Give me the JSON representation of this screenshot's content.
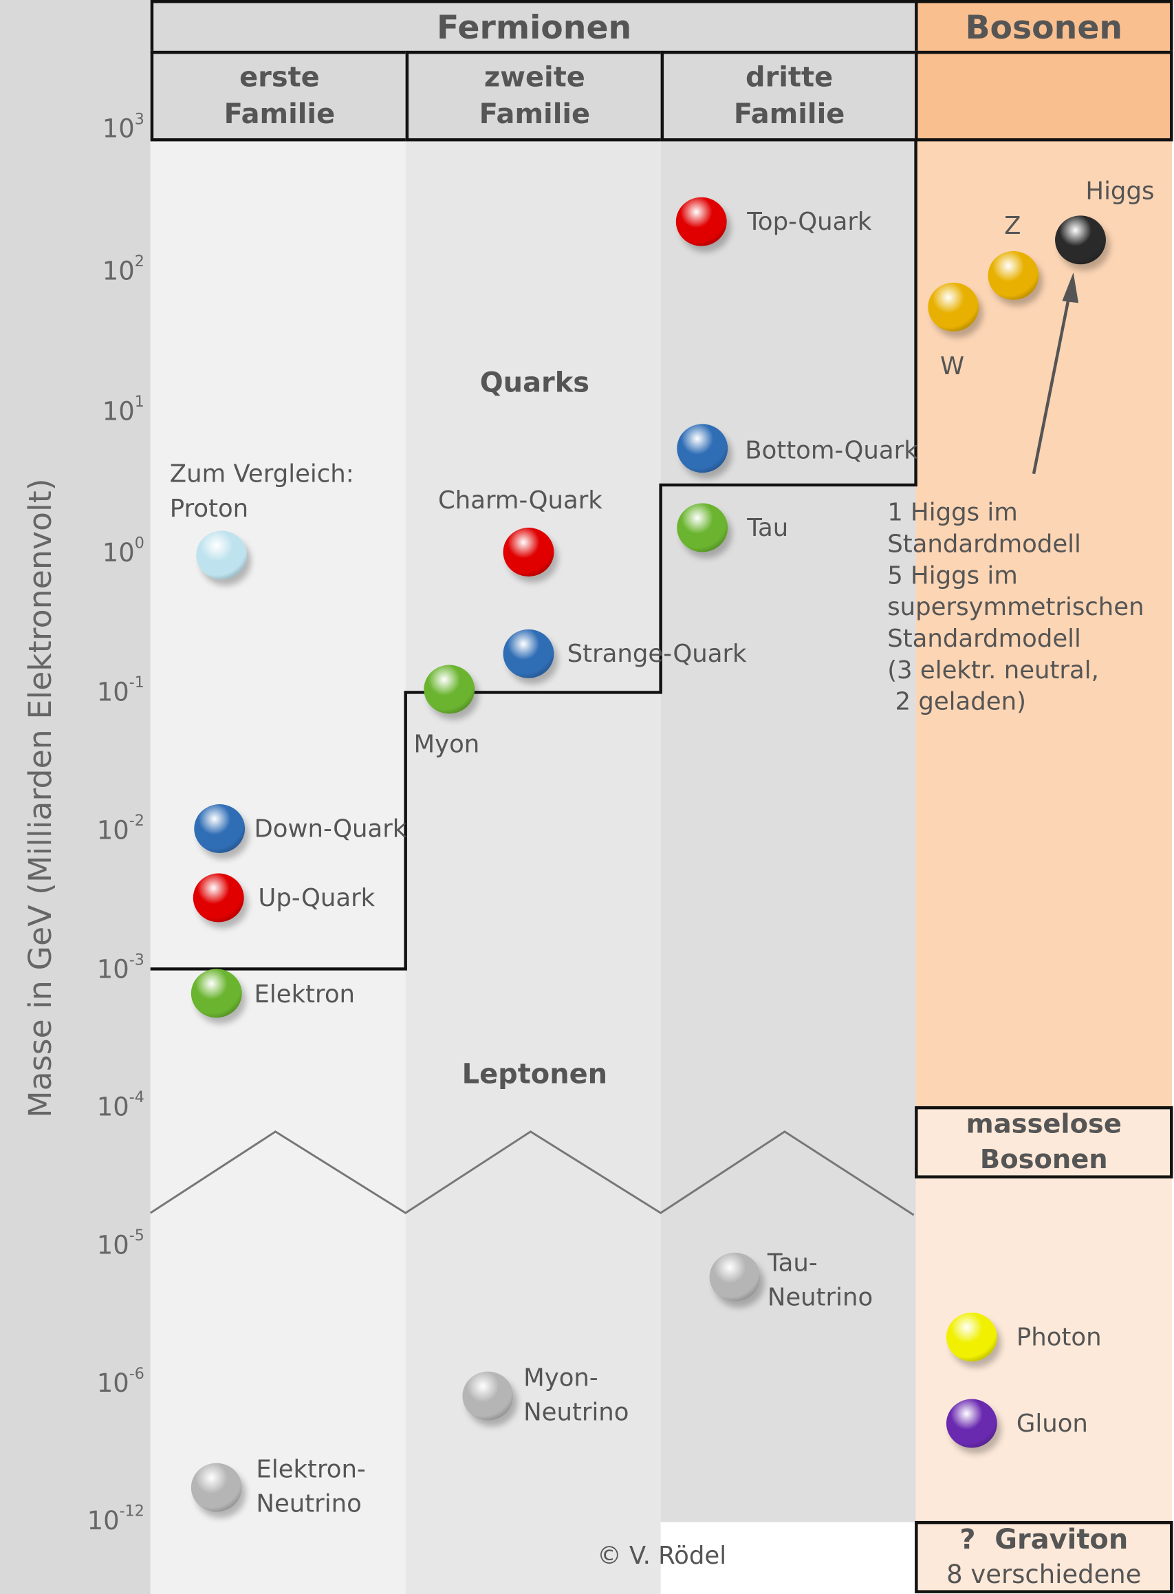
{
  "header": {
    "fermions": "Fermionen",
    "bosons": "Bosonen",
    "families": [
      "erste Familie",
      "zweite Familie",
      "dritte Familie"
    ]
  },
  "axis": {
    "label": "Masse in GeV (Milliarden Elektronenvolt)",
    "ticks": [
      {
        "base": "10",
        "exp": "3"
      },
      {
        "base": "10",
        "exp": "2"
      },
      {
        "base": "10",
        "exp": "1"
      },
      {
        "base": "10",
        "exp": "0"
      },
      {
        "base": "10",
        "exp": "-1"
      },
      {
        "base": "10",
        "exp": "-2"
      },
      {
        "base": "10",
        "exp": "-3"
      },
      {
        "base": "10",
        "exp": "-4"
      },
      {
        "base": "10",
        "exp": "-5"
      },
      {
        "base": "10",
        "exp": "-6"
      },
      {
        "base": "10",
        "exp": "-12"
      }
    ]
  },
  "groups": {
    "quarks": "Quarks",
    "leptons": "Leptonen"
  },
  "particles": [
    {
      "name": "top-quark",
      "lines": [
        "Top-Quark"
      ],
      "color": "#e00000"
    },
    {
      "name": "bottom-quark",
      "lines": [
        "Bottom-Quark"
      ],
      "color": "#2f6db5"
    },
    {
      "name": "tau",
      "lines": [
        "Tau"
      ],
      "color": "#6ab42f"
    },
    {
      "name": "charm-quark",
      "lines": [
        "Charm-Quark"
      ],
      "color": "#e00000"
    },
    {
      "name": "strange-quark",
      "lines": [
        "Strange-Quark"
      ],
      "color": "#2f6db5"
    },
    {
      "name": "myon",
      "lines": [
        "Myon"
      ],
      "color": "#6ab42f"
    },
    {
      "name": "proton",
      "lines": [
        "Zum Vergleich:",
        "Proton"
      ],
      "color": "#bfe3ee"
    },
    {
      "name": "down-quark",
      "lines": [
        "Down-Quark"
      ],
      "color": "#2f6db5"
    },
    {
      "name": "up-quark",
      "lines": [
        "Up-Quark"
      ],
      "color": "#e00000"
    },
    {
      "name": "elektron",
      "lines": [
        "Elektron"
      ],
      "color": "#6ab42f"
    },
    {
      "name": "tau-neutrino",
      "lines": [
        "Tau-",
        "Neutrino"
      ],
      "color": "#b5b5b5"
    },
    {
      "name": "myon-neutrino",
      "lines": [
        "Myon-",
        "Neutrino"
      ],
      "color": "#b5b5b5"
    },
    {
      "name": "elektron-neutrino",
      "lines": [
        "Elektron-",
        "Neutrino"
      ],
      "color": "#b5b5b5"
    },
    {
      "name": "w-boson",
      "lines": [
        "W"
      ],
      "color": "#e8b000"
    },
    {
      "name": "z-boson",
      "lines": [
        "Z"
      ],
      "color": "#e8b000"
    },
    {
      "name": "higgs",
      "lines": [
        "Higgs"
      ],
      "color": "#2a2a2a"
    },
    {
      "name": "photon",
      "lines": [
        "Photon"
      ],
      "color": "#f0f000"
    },
    {
      "name": "gluon",
      "lines": [
        "Gluon"
      ],
      "color": "#6a2ab0"
    }
  ],
  "higgs_note": [
    "1 Higgs im",
    "Standardmodell",
    "5 Higgs im",
    "supersymmetrischen",
    "Standardmodell",
    "(3 elektr. neutral,",
    " 2 geladen)"
  ],
  "massless": {
    "title": "masselose Bosonen"
  },
  "graviton": {
    "title": "?  Graviton",
    "sub": "8 verschiedene"
  },
  "copyright": "© V. Rödel",
  "colors": {
    "axis_bg": "#d9d9d9",
    "col1": "#f1f1f1",
    "col2": "#e7e7e7",
    "col3": "#dedede",
    "boson": "#fcd5b4",
    "boson_header": "#f9bf8f",
    "massless_bg": "#fde9d9"
  }
}
